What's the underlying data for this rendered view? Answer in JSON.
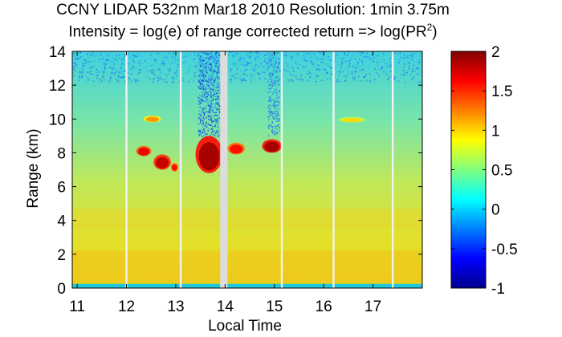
{
  "chart_data": {
    "type": "heatmap",
    "title": "CCNY LIDAR 532nm Mar18 2010 Resolution: 1min 3.75m",
    "subtitle_prefix": "Intensity = log(e) of range corrected return => log(PR",
    "subtitle_sup": "2",
    "subtitle_suffix": ")",
    "xlabel": "Local Time",
    "ylabel": "Range (km)",
    "xlim": [
      10.9,
      18.0
    ],
    "ylim": [
      0,
      14
    ],
    "xticks": [
      11,
      12,
      13,
      14,
      15,
      16,
      17
    ],
    "yticks": [
      0,
      2,
      4,
      6,
      8,
      10,
      12,
      14
    ],
    "colorbar": {
      "min": -1,
      "max": 2,
      "ticks": [
        -1,
        -0.5,
        0,
        0.5,
        1,
        1.5,
        2
      ],
      "tick_labels": [
        "-1",
        "-0.5",
        "0",
        "0.5",
        "1",
        "1.5",
        "2"
      ],
      "colormap": "jet"
    },
    "data_gaps_hours": [
      12.0,
      13.1,
      14.0,
      15.15,
      16.2,
      17.4
    ],
    "wide_gap_hours": [
      13.9,
      14.05
    ],
    "cloud_features": [
      {
        "t0": 12.2,
        "t1": 12.5,
        "z0": 7.8,
        "z1": 8.4,
        "value": 1.7
      },
      {
        "t0": 12.55,
        "t1": 12.9,
        "z0": 7.0,
        "z1": 7.9,
        "value": 1.8
      },
      {
        "t0": 12.9,
        "t1": 13.05,
        "z0": 6.9,
        "z1": 7.4,
        "value": 1.6
      },
      {
        "t0": 13.4,
        "t1": 13.95,
        "z0": 6.8,
        "z1": 9.0,
        "value": 1.9
      },
      {
        "t0": 14.05,
        "t1": 14.4,
        "z0": 7.9,
        "z1": 8.6,
        "value": 1.6
      },
      {
        "t0": 14.75,
        "t1": 15.15,
        "z0": 8.0,
        "z1": 8.8,
        "value": 1.9
      },
      {
        "t0": 12.35,
        "t1": 12.7,
        "z0": 9.8,
        "z1": 10.2,
        "value": 1.2
      },
      {
        "t0": 16.3,
        "t1": 16.85,
        "z0": 9.8,
        "z1": 10.1,
        "value": 1.0
      }
    ]
  }
}
